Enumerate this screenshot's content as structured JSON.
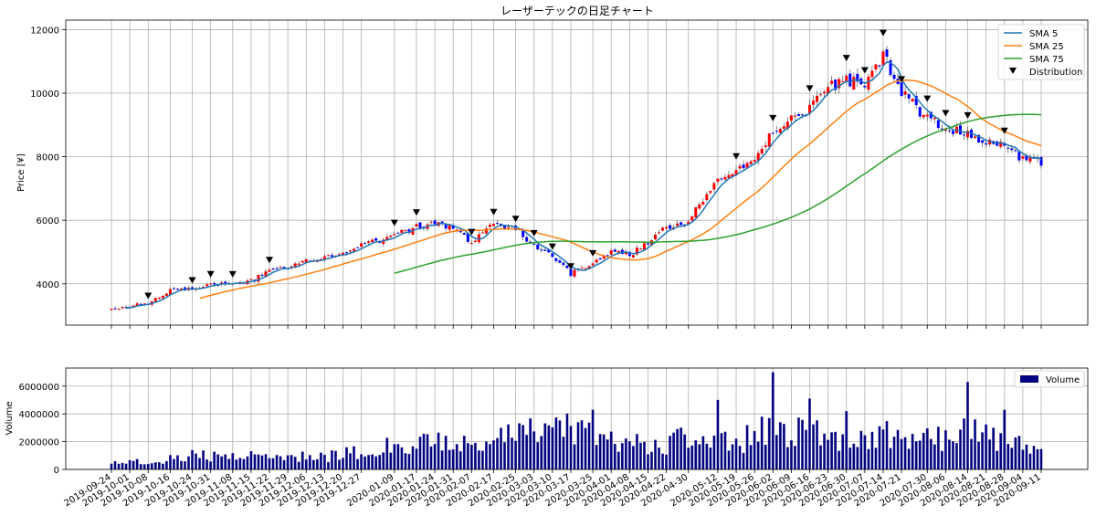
{
  "chart_data": [
    {
      "type": "candlestick",
      "title": "レーザーテックの日足チャート",
      "xlabel": "",
      "ylabel": "Price [¥]",
      "ylim": [
        2700,
        12300
      ],
      "yticks": [
        4000,
        6000,
        8000,
        10000,
        12000
      ],
      "grid": true,
      "legend_position": "top-right",
      "candle_colors": {
        "up": "#ff0000",
        "down": "#0000ff"
      },
      "keypoints": [
        {
          "date": "2019-09-24",
          "close": 3200
        },
        {
          "date": "2019-10-01",
          "close": 3300
        },
        {
          "date": "2019-10-08",
          "close": 3400
        },
        {
          "date": "2019-10-16",
          "close": 3800
        },
        {
          "date": "2019-10-24",
          "close": 3850
        },
        {
          "date": "2019-10-31",
          "close": 4050
        },
        {
          "date": "2019-11-08",
          "close": 3950
        },
        {
          "date": "2019-11-15",
          "close": 4100
        },
        {
          "date": "2019-11-22",
          "close": 4400
        },
        {
          "date": "2019-11-29",
          "close": 4500
        },
        {
          "date": "2019-12-06",
          "close": 4700
        },
        {
          "date": "2019-12-13",
          "close": 4850
        },
        {
          "date": "2019-12-20",
          "close": 4900
        },
        {
          "date": "2019-12-27",
          "close": 5200
        },
        {
          "date": "2020-01-09",
          "close": 5500
        },
        {
          "date": "2020-01-17",
          "close": 5800
        },
        {
          "date": "2020-01-24",
          "close": 5900
        },
        {
          "date": "2020-01-31",
          "close": 5800
        },
        {
          "date": "2020-02-07",
          "close": 5300
        },
        {
          "date": "2020-02-17",
          "close": 5900
        },
        {
          "date": "2020-02-25",
          "close": 5700
        },
        {
          "date": "2020-03-03",
          "close": 5200
        },
        {
          "date": "2020-03-10",
          "close": 4900
        },
        {
          "date": "2020-03-17",
          "close": 4300
        },
        {
          "date": "2020-03-25",
          "close": 4700
        },
        {
          "date": "2020-04-01",
          "close": 5000
        },
        {
          "date": "2020-04-08",
          "close": 4900
        },
        {
          "date": "2020-04-15",
          "close": 5300
        },
        {
          "date": "2020-04-22",
          "close": 5800
        },
        {
          "date": "2020-04-30",
          "close": 6000
        },
        {
          "date": "2020-05-12",
          "close": 7300
        },
        {
          "date": "2020-05-19",
          "close": 7500
        },
        {
          "date": "2020-05-26",
          "close": 8000
        },
        {
          "date": "2020-06-02",
          "close": 8800
        },
        {
          "date": "2020-06-09",
          "close": 9200
        },
        {
          "date": "2020-06-16",
          "close": 9500
        },
        {
          "date": "2020-06-23",
          "close": 10200
        },
        {
          "date": "2020-06-30",
          "close": 10400
        },
        {
          "date": "2020-07-07",
          "close": 10300
        },
        {
          "date": "2020-07-14",
          "close": 11200
        },
        {
          "date": "2020-07-21",
          "close": 10000
        },
        {
          "date": "2020-07-30",
          "close": 9200
        },
        {
          "date": "2020-08-06",
          "close": 8900
        },
        {
          "date": "2020-08-14",
          "close": 8700
        },
        {
          "date": "2020-08-21",
          "close": 8500
        },
        {
          "date": "2020-08-28",
          "close": 8300
        },
        {
          "date": "2020-09-04",
          "close": 7900
        },
        {
          "date": "2020-09-11",
          "close": 7850
        }
      ],
      "sma75_start_date": "2020-01-09",
      "distribution_dates": [
        "2019-10-08",
        "2019-10-24",
        "2019-10-31",
        "2019-11-08",
        "2019-11-22",
        "2020-01-09",
        "2020-01-17",
        "2020-02-07",
        "2020-02-17",
        "2020-02-25",
        "2020-03-03",
        "2020-03-10",
        "2020-03-17",
        "2020-03-25",
        "2020-05-19",
        "2020-06-02",
        "2020-06-16",
        "2020-06-30",
        "2020-07-07",
        "2020-07-14",
        "2020-07-21",
        "2020-07-30",
        "2020-08-06",
        "2020-08-14",
        "2020-08-28"
      ],
      "series": [
        {
          "name": "SMA 5",
          "color": "#1f77b4"
        },
        {
          "name": "SMA 25",
          "color": "#ff7f0e"
        },
        {
          "name": "SMA 75",
          "color": "#2ca02c"
        },
        {
          "name": "Distribution",
          "color": "#000000",
          "marker": "triangle-down"
        }
      ]
    },
    {
      "type": "bar",
      "ylabel": "Volume",
      "xlabel": "",
      "ylim": [
        0,
        7300000
      ],
      "yticks": [
        0,
        2000000,
        4000000,
        6000000
      ],
      "legend_position": "top-right",
      "series": [
        {
          "name": "Volume",
          "color": "#000080"
        }
      ],
      "keypoints": [
        {
          "date": "2019-09-24",
          "volume": 450000
        },
        {
          "date": "2019-10-08",
          "volume": 600000
        },
        {
          "date": "2019-10-24",
          "volume": 1000000
        },
        {
          "date": "2019-11-08",
          "volume": 900000
        },
        {
          "date": "2019-11-22",
          "volume": 1100000
        },
        {
          "date": "2019-12-13",
          "volume": 900000
        },
        {
          "date": "2019-12-27",
          "volume": 1300000
        },
        {
          "date": "2020-01-09",
          "volume": 1700000
        },
        {
          "date": "2020-01-31",
          "volume": 1900000
        },
        {
          "date": "2020-02-17",
          "volume": 2100000
        },
        {
          "date": "2020-03-10",
          "volume": 3000000
        },
        {
          "date": "2020-03-25",
          "volume": 2600000
        },
        {
          "date": "2020-04-15",
          "volume": 1600000
        },
        {
          "date": "2020-04-30",
          "volume": 2200000
        },
        {
          "date": "2020-05-19",
          "volume": 1900000
        },
        {
          "date": "2020-06-02",
          "volume": 3000000
        },
        {
          "date": "2020-06-16",
          "volume": 2700000
        },
        {
          "date": "2020-06-30",
          "volume": 2300000
        },
        {
          "date": "2020-07-14",
          "volume": 2500000
        },
        {
          "date": "2020-07-30",
          "volume": 2100000
        },
        {
          "date": "2020-08-14",
          "volume": 2800000
        },
        {
          "date": "2020-08-28",
          "volume": 2000000
        },
        {
          "date": "2020-09-11",
          "volume": 1400000
        }
      ],
      "spikes": [
        {
          "date": "2020-03-25",
          "volume": 4300000
        },
        {
          "date": "2020-05-12",
          "volume": 5000000
        },
        {
          "date": "2020-06-02",
          "volume": 7000000
        },
        {
          "date": "2020-06-16",
          "volume": 5100000
        },
        {
          "date": "2020-06-30",
          "volume": 4200000
        },
        {
          "date": "2020-08-14",
          "volume": 6300000
        },
        {
          "date": "2020-08-28",
          "volume": 4300000
        }
      ]
    }
  ],
  "x_tick_labels": [
    "2019-09-24",
    "2019-10-01",
    "2019-10-08",
    "2019-10-16",
    "2019-10-24",
    "2019-10-31",
    "2019-11-08",
    "2019-11-15",
    "2019-11-22",
    "2019-11-29",
    "2019-12-06",
    "2019-12-13",
    "2019-12-20",
    "2019-12-27",
    "2020-01-09",
    "2020-01-17",
    "2020-01-24",
    "2020-01-31",
    "2020-02-07",
    "2020-02-17",
    "2020-02-25",
    "2020-03-03",
    "2020-03-10",
    "2020-03-17",
    "2020-03-25",
    "2020-04-01",
    "2020-04-08",
    "2020-04-15",
    "2020-04-22",
    "2020-04-30",
    "2020-05-12",
    "2020-05-19",
    "2020-05-26",
    "2020-06-02",
    "2020-06-09",
    "2020-06-16",
    "2020-06-23",
    "2020-06-30",
    "2020-07-07",
    "2020-07-14",
    "2020-07-21",
    "2020-07-30",
    "2020-08-06",
    "2020-08-14",
    "2020-08-21",
    "2020-08-28",
    "2020-09-04",
    "2020-09-11"
  ]
}
